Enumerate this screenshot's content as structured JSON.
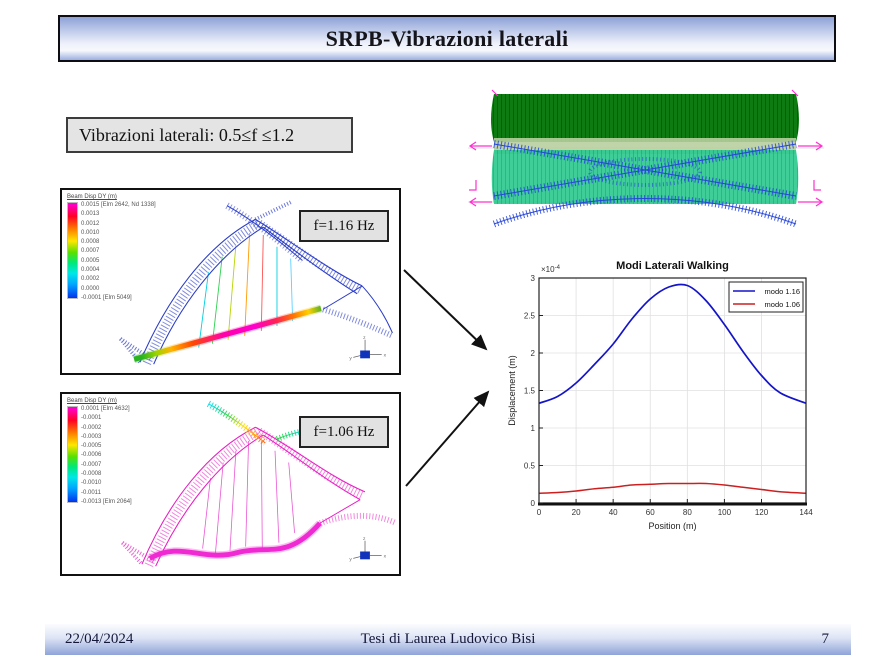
{
  "slide": {
    "title": "SRPB-Vibrazioni laterali",
    "callout": "Vibrazioni laterali: 0.5≤f ≤1.2",
    "footer": {
      "date": "22/04/2024",
      "center": "Tesi di Laurea Ludovico Bisi",
      "page": "7"
    }
  },
  "fem_top": {
    "label": "f=1.16 Hz",
    "legend_title": "Beam Disp DY  (m)",
    "legend_values": [
      "0.0015 [Elm 2642, Nd 1338]",
      "0.0013",
      "0.0012",
      "0.0010",
      "0.0008",
      "0.0007",
      "0.0005",
      "0.0004",
      "0.0002",
      "0.0000",
      "-0.0001 [Elm 5049]"
    ]
  },
  "fem_bottom": {
    "label": "f=1.06 Hz",
    "legend_title": "Beam Disp DY  (m)",
    "legend_values": [
      "0.0001 [Elm 4632]",
      "-0.0001",
      "-0.0002",
      "-0.0003",
      "-0.0005",
      "-0.0006",
      "-0.0007",
      "-0.0008",
      "-0.0010",
      "-0.0011",
      "-0.0013 [Elm 2064]"
    ]
  },
  "chart_data": {
    "type": "line",
    "title": "Modi Laterali Walking",
    "xlabel": "Position (m)",
    "ylabel": "Displacement (m)",
    "y_exponent_label": "×10",
    "y_exponent": "-4",
    "xlim": [
      0,
      144
    ],
    "ylim": [
      0,
      3
    ],
    "xticks": [
      0,
      20,
      40,
      60,
      80,
      100,
      120,
      144
    ],
    "yticks": [
      0,
      0.5,
      1,
      1.5,
      2,
      2.5,
      3
    ],
    "grid": true,
    "legend_position": "top-right",
    "x": [
      0,
      10,
      20,
      30,
      40,
      50,
      60,
      70,
      80,
      90,
      100,
      110,
      120,
      130,
      144
    ],
    "series": [
      {
        "name": "modo 1.16",
        "color": "#1414c8",
        "values": [
          1.33,
          1.42,
          1.6,
          1.85,
          2.12,
          2.45,
          2.72,
          2.88,
          2.9,
          2.7,
          2.38,
          2.02,
          1.7,
          1.47,
          1.33
        ]
      },
      {
        "name": "modo 1.06",
        "color": "#cc2020",
        "values": [
          0.13,
          0.14,
          0.16,
          0.19,
          0.21,
          0.24,
          0.25,
          0.26,
          0.26,
          0.26,
          0.24,
          0.21,
          0.18,
          0.15,
          0.13
        ]
      }
    ]
  },
  "colors": {
    "title_gradient_top": "#8da1d7",
    "footer_gradient_bottom": "#8fa3d8",
    "mode_blue": "#1414c8",
    "mode_red": "#cc2020",
    "fem_top_structure": "#2a3cc8",
    "fem_bottom_structure": "#e820c4",
    "plan_dark_green": "#0e7a12",
    "plan_teal": "#2ec98f",
    "plan_marker_magenta": "#ff30d0"
  }
}
